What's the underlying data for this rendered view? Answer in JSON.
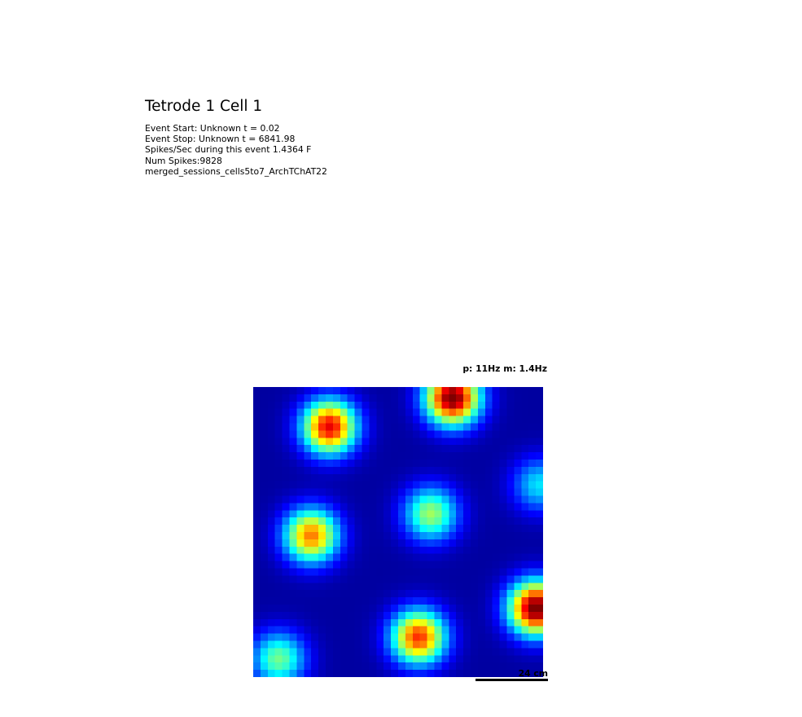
{
  "title": "Tetrode 1 Cell 1",
  "info": {
    "event_start": "Event Start: Unknown t = 0.02",
    "event_stop": "Event Stop: Unknown t = 6841.98",
    "spikes_per_sec": "Spikes/Sec during this event 1.4364 F",
    "num_spikes": "Num Spikes:9828",
    "session": "merged_sessions_cells5to7_ArchTChAT22"
  },
  "chart_data": {
    "type": "heatmap",
    "title": "p: 11Hz m: 1.4Hz",
    "colormap": "jet",
    "peak_rate_hz": 11,
    "mean_rate_hz": 1.4,
    "grid_bins": 40,
    "baseline_hz": 0.35,
    "firing_fields": [
      {
        "col": 10.5,
        "row": 5.5,
        "peak_hz": 9.5
      },
      {
        "col": 27.5,
        "row": 1.5,
        "peak_hz": 11.0
      },
      {
        "col": 8.0,
        "row": 20.5,
        "peak_hz": 8.0
      },
      {
        "col": 24.5,
        "row": 17.5,
        "peak_hz": 5.5
      },
      {
        "col": 39.5,
        "row": 13.5,
        "peak_hz": 3.5
      },
      {
        "col": 39.0,
        "row": 30.5,
        "peak_hz": 11.0
      },
      {
        "col": 22.8,
        "row": 34.5,
        "peak_hz": 8.8
      },
      {
        "col": 3.5,
        "row": 37.5,
        "peak_hz": 5.0
      }
    ],
    "field_width_bins": 2.6,
    "scale_bar_label": "24 cm"
  }
}
